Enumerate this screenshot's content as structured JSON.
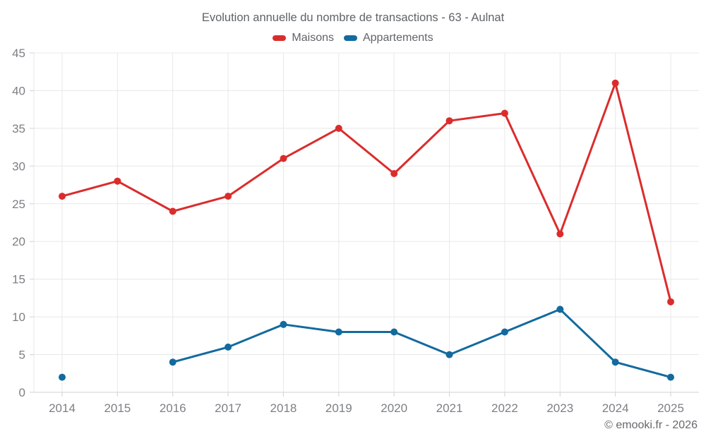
{
  "chart_data": {
    "type": "line",
    "title": "Evolution annuelle du nombre de transactions - 63 - Aulnat",
    "categories": [
      "2014",
      "2015",
      "2016",
      "2017",
      "2018",
      "2019",
      "2020",
      "2021",
      "2022",
      "2023",
      "2024",
      "2025"
    ],
    "series": [
      {
        "name": "Maisons",
        "color": "#db2c2c",
        "values": [
          26,
          28,
          24,
          26,
          31,
          35,
          29,
          36,
          37,
          21,
          41,
          12
        ]
      },
      {
        "name": "Appartements",
        "color": "#136a9e",
        "values": [
          2,
          null,
          4,
          6,
          9,
          8,
          8,
          5,
          8,
          11,
          4,
          2
        ]
      }
    ],
    "xlabel": "",
    "ylabel": "",
    "ylim": [
      0,
      45
    ],
    "ytick_step": 5,
    "yticks": [
      0,
      5,
      10,
      15,
      20,
      25,
      30,
      35,
      40,
      45
    ],
    "grid": true,
    "legend_position": "top",
    "grid_color": "#e8e8e8",
    "axis_color": "#d2d2d2",
    "tick_label_color": "#7c8084"
  },
  "footer": {
    "copyright": "© emooki.fr - 2026"
  }
}
